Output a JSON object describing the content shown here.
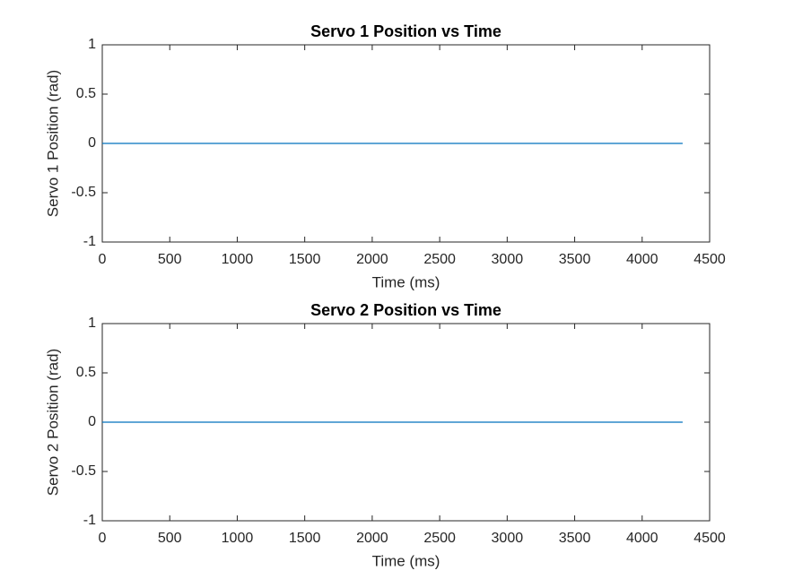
{
  "chart_data": [
    {
      "type": "line",
      "title": "Servo 1 Position vs Time",
      "xlabel": "Time (ms)",
      "ylabel": "Servo 1 Position (rad)",
      "x": [
        0,
        4300
      ],
      "values": [
        0,
        0
      ],
      "color": "#0072bd",
      "xlim": [
        0,
        4500
      ],
      "xticks": [
        0,
        500,
        1000,
        1500,
        2000,
        2500,
        3000,
        3500,
        4000,
        4500
      ],
      "ylim": [
        -1,
        1
      ],
      "yticks": [
        -1,
        -0.5,
        0,
        0.5,
        1
      ],
      "grid": false
    },
    {
      "type": "line",
      "title": "Servo 2 Position vs Time",
      "xlabel": "Time (ms)",
      "ylabel": "Servo 2 Position (rad)",
      "x": [
        0,
        4300
      ],
      "values": [
        0,
        0
      ],
      "color": "#0072bd",
      "xlim": [
        0,
        4500
      ],
      "xticks": [
        0,
        500,
        1000,
        1500,
        2000,
        2500,
        3000,
        3500,
        4000,
        4500
      ],
      "ylim": [
        -1,
        1
      ],
      "yticks": [
        -1,
        -0.5,
        0,
        0.5,
        1
      ],
      "grid": false
    }
  ]
}
